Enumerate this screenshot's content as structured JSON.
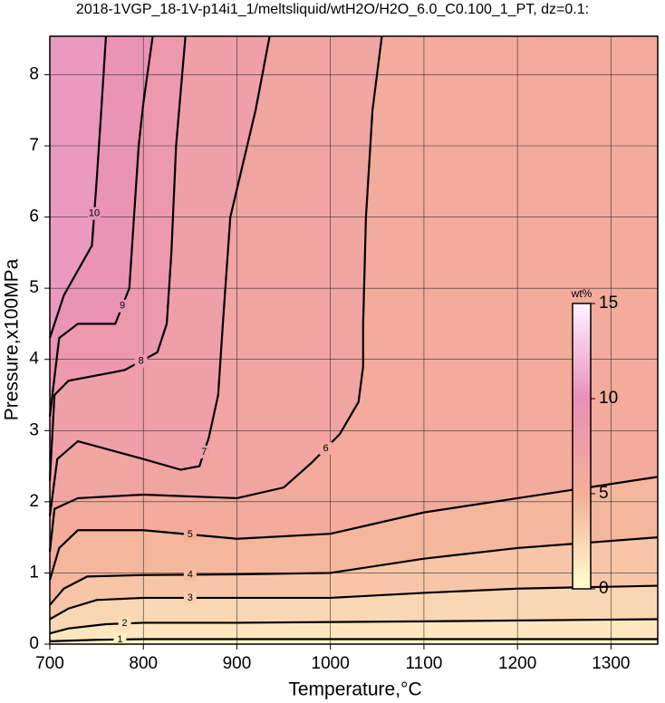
{
  "chart_data": {
    "type": "contour",
    "title": "2018-1VGP_18-1V-p14i1_1/meltsliquid/wtH2O/H2O_6.0_C0.100_1_PT, dz=0.1:",
    "x_label": "Temperature,°C",
    "y_label": "Pressure,x100MPa",
    "xlim": [
      700,
      1350
    ],
    "ylim": [
      0,
      8.54
    ],
    "xticks": [
      700,
      800,
      900,
      1000,
      1100,
      1200,
      1300
    ],
    "yticks": [
      0,
      1,
      2,
      3,
      4,
      5,
      6,
      7,
      8
    ],
    "grid": true,
    "colorbar_label": "wt%",
    "clim": [
      0,
      15
    ],
    "cticks": [
      0,
      5,
      10,
      15
    ],
    "colormap": [
      "#ffffd0",
      "#f4ae98",
      "#e890b8",
      "#fff4ff"
    ],
    "contours": [
      {
        "level": 1,
        "x": [
          700,
          750,
          800,
          1350
        ],
        "y": [
          0.04,
          0.06,
          0.07,
          0.07
        ]
      },
      {
        "level": 2,
        "x": [
          700,
          720,
          760,
          800,
          900,
          1100,
          1350
        ],
        "y": [
          0.15,
          0.22,
          0.28,
          0.3,
          0.3,
          0.32,
          0.35
        ]
      },
      {
        "level": 3,
        "x": [
          700,
          720,
          750,
          800,
          900,
          1000,
          1100,
          1200,
          1350
        ],
        "y": [
          0.35,
          0.5,
          0.62,
          0.65,
          0.65,
          0.65,
          0.72,
          0.78,
          0.82
        ]
      },
      {
        "level": 4,
        "x": [
          700,
          715,
          740,
          800,
          900,
          1000,
          1100,
          1200,
          1350
        ],
        "y": [
          0.55,
          0.78,
          0.95,
          0.97,
          0.98,
          1.0,
          1.2,
          1.35,
          1.5
        ]
      },
      {
        "level": 5,
        "x": [
          700,
          710,
          730,
          800,
          900,
          1000,
          1100,
          1200,
          1350
        ],
        "y": [
          0.9,
          1.35,
          1.6,
          1.6,
          1.48,
          1.55,
          1.85,
          2.05,
          2.35
        ]
      },
      {
        "level": 6,
        "x": [
          700,
          705,
          730,
          800,
          900,
          950,
          980,
          1010,
          1030,
          1035,
          1035,
          1038,
          1045,
          1055
        ],
        "y": [
          1.3,
          1.9,
          2.05,
          2.1,
          2.05,
          2.2,
          2.55,
          2.95,
          3.4,
          3.9,
          4.5,
          6,
          7.5,
          8.54
        ]
      },
      {
        "level": 7,
        "x": [
          700,
          708,
          730,
          800,
          840,
          860,
          870,
          880,
          885,
          893,
          920,
          935
        ],
        "y": [
          1.8,
          2.6,
          2.85,
          2.6,
          2.45,
          2.5,
          2.9,
          3.5,
          4.5,
          6,
          7.5,
          8.54
        ]
      },
      {
        "level": 8,
        "x": [
          700,
          705,
          720,
          780,
          815,
          825,
          830,
          835,
          845
        ],
        "y": [
          2.3,
          3.5,
          3.7,
          3.85,
          4.1,
          4.5,
          5.5,
          7,
          8.54
        ]
      },
      {
        "level": 9,
        "x": [
          700,
          710,
          730,
          770,
          785,
          790,
          795,
          800,
          810
        ],
        "y": [
          3.2,
          4.3,
          4.5,
          4.5,
          5,
          6,
          7,
          7.6,
          8.54
        ]
      },
      {
        "level": 10,
        "x": [
          700,
          715,
          745,
          750,
          755,
          760
        ],
        "y": [
          4.3,
          4.9,
          5.6,
          6.5,
          7.5,
          8.54
        ]
      }
    ]
  }
}
